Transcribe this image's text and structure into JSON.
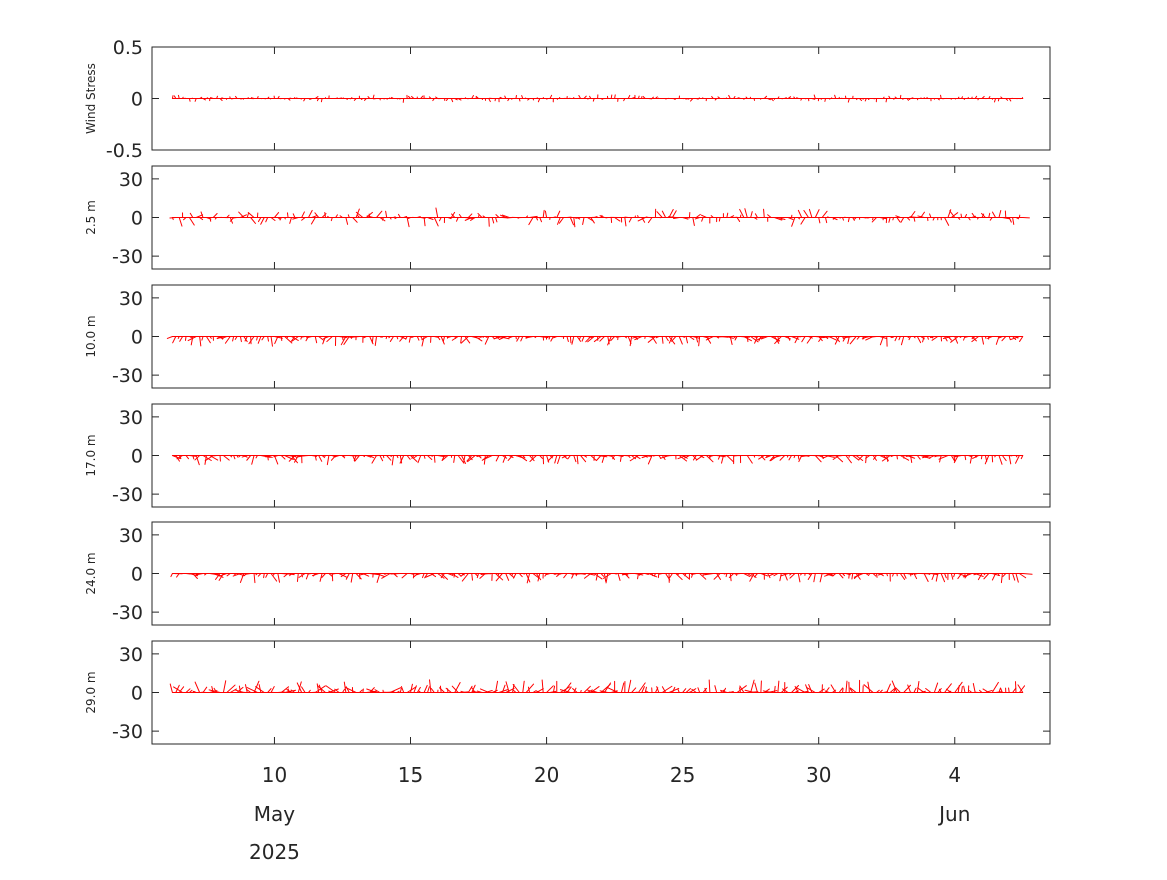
{
  "chart_data": {
    "type": "stick-vector",
    "series_color": "#ff0000",
    "x_axis": {
      "ticks": [
        {
          "date": "2025-05-10",
          "label": "10"
        },
        {
          "date": "2025-05-15",
          "label": "15"
        },
        {
          "date": "2025-05-20",
          "label": "20"
        },
        {
          "date": "2025-05-25",
          "label": "25"
        },
        {
          "date": "2025-05-30",
          "label": "30"
        },
        {
          "date": "2025-06-04",
          "label": "4"
        }
      ],
      "month_labels": [
        {
          "date": "2025-05-10",
          "label": "May"
        },
        {
          "date": "2025-06-04",
          "label": "Jun"
        }
      ],
      "year_label": {
        "date": "2025-05-10",
        "label": "2025"
      },
      "range": [
        "2025-05-05T12:00",
        "2025-06-07T12:00"
      ],
      "data_range": [
        "2025-05-06T06:00",
        "2025-06-06T12:00"
      ]
    },
    "panels": [
      {
        "ylabel": "Wind Stress",
        "ylim": [
          -0.5,
          0.5
        ],
        "yticks": [
          {
            "v": 0.5,
            "label": "0.5"
          },
          {
            "v": 0,
            "label": "0"
          },
          {
            "v": -0.5,
            "label": "-0.5"
          }
        ],
        "typical_amplitude": 0.02
      },
      {
        "ylabel": "2.5 m",
        "ylim": [
          -40,
          40
        ],
        "yticks": [
          {
            "v": 30,
            "label": "30"
          },
          {
            "v": 0,
            "label": "0"
          },
          {
            "v": -30,
            "label": "-30"
          }
        ],
        "typical_amplitude": 4
      },
      {
        "ylabel": "10.0 m",
        "ylim": [
          -40,
          40
        ],
        "yticks": [
          {
            "v": 30,
            "label": "30"
          },
          {
            "v": 0,
            "label": "0"
          },
          {
            "v": -30,
            "label": "-30"
          }
        ],
        "typical_amplitude": 5
      },
      {
        "ylabel": "17.0 m",
        "ylim": [
          -40,
          40
        ],
        "yticks": [
          {
            "v": 30,
            "label": "30"
          },
          {
            "v": 0,
            "label": "0"
          },
          {
            "v": -30,
            "label": "-30"
          }
        ],
        "typical_amplitude": 5
      },
      {
        "ylabel": "24.0 m",
        "ylim": [
          -40,
          40
        ],
        "yticks": [
          {
            "v": 30,
            "label": "30"
          },
          {
            "v": 0,
            "label": "0"
          },
          {
            "v": -30,
            "label": "-30"
          }
        ],
        "typical_amplitude": 5
      },
      {
        "ylabel": "29.0 m",
        "ylim": [
          -40,
          40
        ],
        "yticks": [
          {
            "v": 30,
            "label": "30"
          },
          {
            "v": 0,
            "label": "0"
          },
          {
            "v": -30,
            "label": "-30"
          }
        ],
        "typical_amplitude": 6
      }
    ]
  }
}
